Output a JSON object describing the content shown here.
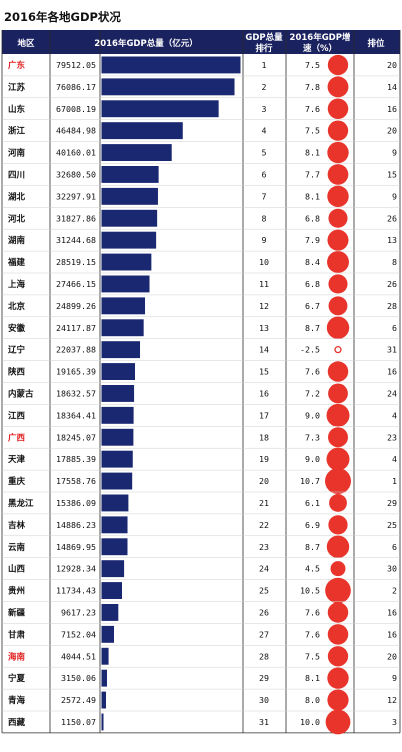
{
  "title": "2016年各地GDP状况",
  "headers": {
    "region": "地区",
    "gdp": "2016年GDP总量（亿元）",
    "rank_l1": "GDP总量",
    "rank_l2": "排行",
    "growth_l1": "2016年GDP增",
    "growth_l2": "速（%）",
    "growth_rank": "排位"
  },
  "colors": {
    "header_bg": "#1a2260",
    "bar": "#1a2872",
    "circle": "#e8342b",
    "highlight_text": "#e02020",
    "border": "#2a2a2a"
  },
  "chart_data": {
    "type": "table",
    "gdp_unit": "亿元",
    "growth_unit": "%",
    "rows": [
      {
        "region": "广东",
        "gdp": "79512.05",
        "rank": "1",
        "growth": "7.5",
        "growth_rank": "20",
        "highlight": true
      },
      {
        "region": "江苏",
        "gdp": "76086.17",
        "rank": "2",
        "growth": "7.8",
        "growth_rank": "14",
        "highlight": false
      },
      {
        "region": "山东",
        "gdp": "67008.19",
        "rank": "3",
        "growth": "7.6",
        "growth_rank": "16",
        "highlight": false
      },
      {
        "region": "浙江",
        "gdp": "46484.98",
        "rank": "4",
        "growth": "7.5",
        "growth_rank": "20",
        "highlight": false
      },
      {
        "region": "河南",
        "gdp": "40160.01",
        "rank": "5",
        "growth": "8.1",
        "growth_rank": "9",
        "highlight": false
      },
      {
        "region": "四川",
        "gdp": "32680.50",
        "rank": "6",
        "growth": "7.7",
        "growth_rank": "15",
        "highlight": false
      },
      {
        "region": "湖北",
        "gdp": "32297.91",
        "rank": "7",
        "growth": "8.1",
        "growth_rank": "9",
        "highlight": false
      },
      {
        "region": "河北",
        "gdp": "31827.86",
        "rank": "8",
        "growth": "6.8",
        "growth_rank": "26",
        "highlight": false
      },
      {
        "region": "湖南",
        "gdp": "31244.68",
        "rank": "9",
        "growth": "7.9",
        "growth_rank": "13",
        "highlight": false
      },
      {
        "region": "福建",
        "gdp": "28519.15",
        "rank": "10",
        "growth": "8.4",
        "growth_rank": "8",
        "highlight": false
      },
      {
        "region": "上海",
        "gdp": "27466.15",
        "rank": "11",
        "growth": "6.8",
        "growth_rank": "26",
        "highlight": false
      },
      {
        "region": "北京",
        "gdp": "24899.26",
        "rank": "12",
        "growth": "6.7",
        "growth_rank": "28",
        "highlight": false
      },
      {
        "region": "安徽",
        "gdp": "24117.87",
        "rank": "13",
        "growth": "8.7",
        "growth_rank": "6",
        "highlight": false
      },
      {
        "region": "辽宁",
        "gdp": "22037.88",
        "rank": "14",
        "growth": "-2.5",
        "growth_rank": "31",
        "highlight": false
      },
      {
        "region": "陕西",
        "gdp": "19165.39",
        "rank": "15",
        "growth": "7.6",
        "growth_rank": "16",
        "highlight": false
      },
      {
        "region": "内蒙古",
        "gdp": "18632.57",
        "rank": "16",
        "growth": "7.2",
        "growth_rank": "24",
        "highlight": false
      },
      {
        "region": "江西",
        "gdp": "18364.41",
        "rank": "17",
        "growth": "9.0",
        "growth_rank": "4",
        "highlight": false
      },
      {
        "region": "广西",
        "gdp": "18245.07",
        "rank": "18",
        "growth": "7.3",
        "growth_rank": "23",
        "highlight": true
      },
      {
        "region": "天津",
        "gdp": "17885.39",
        "rank": "19",
        "growth": "9.0",
        "growth_rank": "4",
        "highlight": false
      },
      {
        "region": "重庆",
        "gdp": "17558.76",
        "rank": "20",
        "growth": "10.7",
        "growth_rank": "1",
        "highlight": false
      },
      {
        "region": "黑龙江",
        "gdp": "15386.09",
        "rank": "21",
        "growth": "6.1",
        "growth_rank": "29",
        "highlight": false
      },
      {
        "region": "吉林",
        "gdp": "14886.23",
        "rank": "22",
        "growth": "6.9",
        "growth_rank": "25",
        "highlight": false
      },
      {
        "region": "云南",
        "gdp": "14869.95",
        "rank": "23",
        "growth": "8.7",
        "growth_rank": "6",
        "highlight": false
      },
      {
        "region": "山西",
        "gdp": "12928.34",
        "rank": "24",
        "growth": "4.5",
        "growth_rank": "30",
        "highlight": false
      },
      {
        "region": "贵州",
        "gdp": "11734.43",
        "rank": "25",
        "growth": "10.5",
        "growth_rank": "2",
        "highlight": false
      },
      {
        "region": "新疆",
        "gdp": "9617.23",
        "rank": "26",
        "growth": "7.6",
        "growth_rank": "16",
        "highlight": false
      },
      {
        "region": "甘肃",
        "gdp": "7152.04",
        "rank": "27",
        "growth": "7.6",
        "growth_rank": "16",
        "highlight": false
      },
      {
        "region": "海南",
        "gdp": "4044.51",
        "rank": "28",
        "growth": "7.5",
        "growth_rank": "20",
        "highlight": true
      },
      {
        "region": "宁夏",
        "gdp": "3150.06",
        "rank": "29",
        "growth": "8.1",
        "growth_rank": "9",
        "highlight": false
      },
      {
        "region": "青海",
        "gdp": "2572.49",
        "rank": "30",
        "growth": "8.0",
        "growth_rank": "12",
        "highlight": false
      },
      {
        "region": "西藏",
        "gdp": "1150.07",
        "rank": "31",
        "growth": "10.0",
        "growth_rank": "3",
        "highlight": false
      }
    ]
  }
}
